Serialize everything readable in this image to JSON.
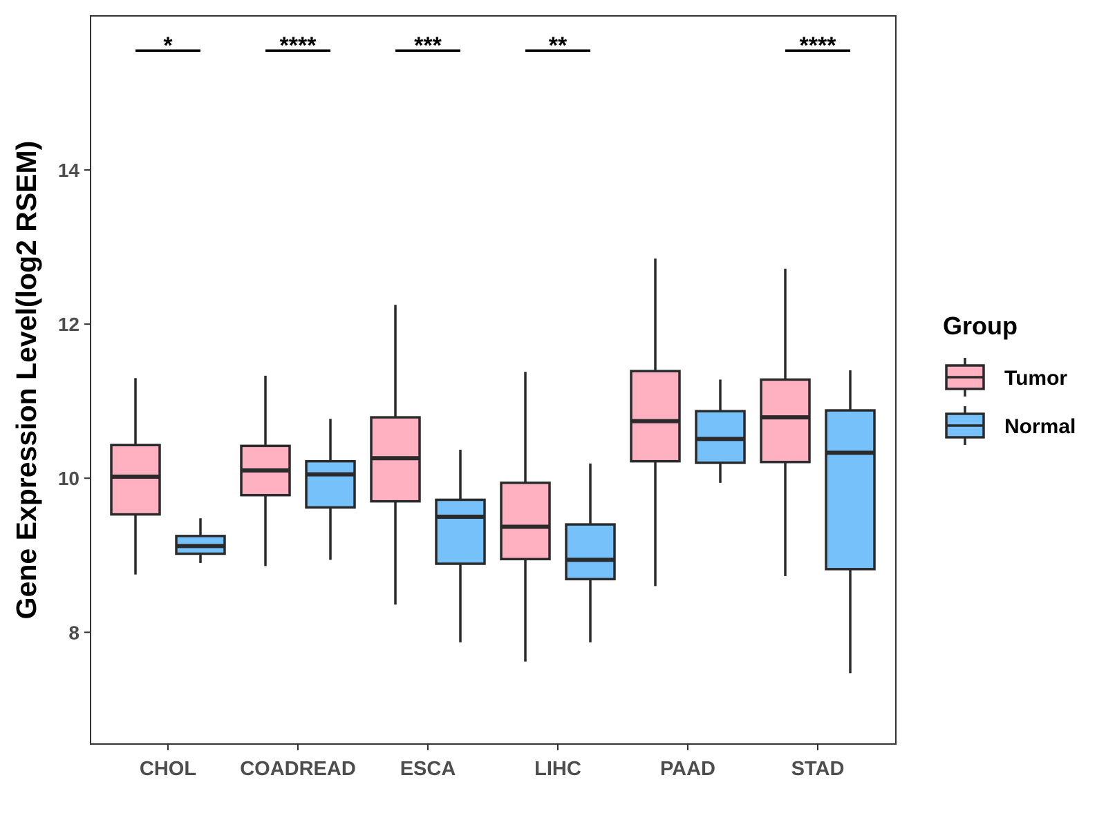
{
  "chart_data": {
    "type": "box",
    "title": "",
    "xlabel": "",
    "ylabel": "Gene Expression Level(log2 RSEM)",
    "ylim": [
      6.55,
      16.0
    ],
    "yticks": [
      8,
      10,
      12,
      14
    ],
    "ytick_labels": [
      "8",
      "10",
      "12",
      "14"
    ],
    "categories": [
      "CHOL",
      "COADREAD",
      "ESCA",
      "LIHC",
      "PAAD",
      "STAD"
    ],
    "legend": {
      "title": "Group",
      "position": "right",
      "entries": [
        "Tumor",
        "Normal"
      ]
    },
    "colors": {
      "Tumor": "#ffb1c1",
      "Normal": "#76c1fa",
      "outline": "#2a2a2a"
    },
    "series": [
      {
        "name": "Tumor",
        "boxes": [
          {
            "category": "CHOL",
            "low": 8.75,
            "q1": 9.53,
            "median": 10.02,
            "q3": 10.43,
            "high": 11.3
          },
          {
            "category": "COADREAD",
            "low": 8.86,
            "q1": 9.78,
            "median": 10.1,
            "q3": 10.42,
            "high": 11.33
          },
          {
            "category": "ESCA",
            "low": 8.36,
            "q1": 9.7,
            "median": 10.26,
            "q3": 10.79,
            "high": 12.25
          },
          {
            "category": "LIHC",
            "low": 7.62,
            "q1": 8.95,
            "median": 9.37,
            "q3": 9.94,
            "high": 11.38
          },
          {
            "category": "PAAD",
            "low": 8.6,
            "q1": 10.22,
            "median": 10.74,
            "q3": 11.39,
            "high": 12.85
          },
          {
            "category": "STAD",
            "low": 8.73,
            "q1": 10.21,
            "median": 10.79,
            "q3": 11.28,
            "high": 12.72
          }
        ]
      },
      {
        "name": "Normal",
        "boxes": [
          {
            "category": "CHOL",
            "low": 8.9,
            "q1": 9.02,
            "median": 9.12,
            "q3": 9.25,
            "high": 9.48
          },
          {
            "category": "COADREAD",
            "low": 8.94,
            "q1": 9.62,
            "median": 10.05,
            "q3": 10.22,
            "high": 10.77
          },
          {
            "category": "ESCA",
            "low": 7.87,
            "q1": 8.89,
            "median": 9.5,
            "q3": 9.72,
            "high": 10.37
          },
          {
            "category": "LIHC",
            "low": 7.87,
            "q1": 8.69,
            "median": 8.94,
            "q3": 9.4,
            "high": 10.19
          },
          {
            "category": "PAAD",
            "low": 9.94,
            "q1": 10.2,
            "median": 10.51,
            "q3": 10.87,
            "high": 11.28
          },
          {
            "category": "STAD",
            "low": 7.47,
            "q1": 8.82,
            "median": 10.33,
            "q3": 10.88,
            "high": 11.4
          }
        ]
      }
    ],
    "annotations": [
      {
        "category": "CHOL",
        "text": "*"
      },
      {
        "category": "COADREAD",
        "text": "****"
      },
      {
        "category": "ESCA",
        "text": "***"
      },
      {
        "category": "LIHC",
        "text": "**"
      },
      {
        "category": "STAD",
        "text": "****"
      }
    ],
    "annotation_y": 15.55
  }
}
